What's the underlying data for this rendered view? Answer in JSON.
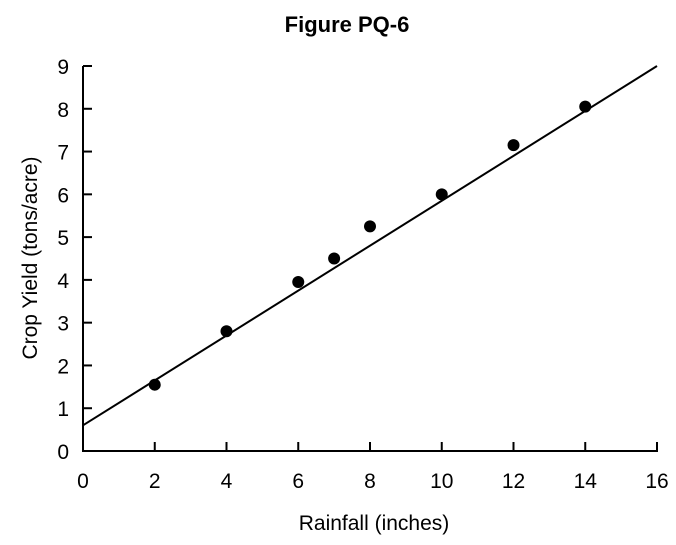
{
  "chart_data": {
    "type": "scatter",
    "title": "Figure PQ-6",
    "xlabel": "Rainfall (inches)",
    "ylabel": "Crop Yield (tons/acre)",
    "xlim": [
      0,
      16
    ],
    "ylim": [
      0,
      9
    ],
    "xticks": [
      0,
      2,
      4,
      6,
      8,
      10,
      12,
      14,
      16
    ],
    "yticks": [
      0,
      1,
      2,
      3,
      4,
      5,
      6,
      7,
      8,
      9
    ],
    "xtick_labels": [
      "0",
      "2",
      "4",
      "6",
      "8",
      "10",
      "12",
      "14",
      "16"
    ],
    "ytick_labels": [
      "0",
      "1",
      "2",
      "3",
      "4",
      "5",
      "6",
      "7",
      "8",
      "9"
    ],
    "grid": false,
    "points": [
      {
        "x": 2,
        "y": 1.55
      },
      {
        "x": 4,
        "y": 2.8
      },
      {
        "x": 6,
        "y": 3.95
      },
      {
        "x": 7,
        "y": 4.5
      },
      {
        "x": 8,
        "y": 5.25
      },
      {
        "x": 10,
        "y": 6.0
      },
      {
        "x": 12,
        "y": 7.15
      },
      {
        "x": 14,
        "y": 8.05
      }
    ],
    "trend_line": {
      "x": [
        0,
        16
      ],
      "y": [
        0.6,
        9.0
      ]
    },
    "colors": {
      "marker": "#000000",
      "line": "#000000",
      "axis": "#000000"
    }
  }
}
